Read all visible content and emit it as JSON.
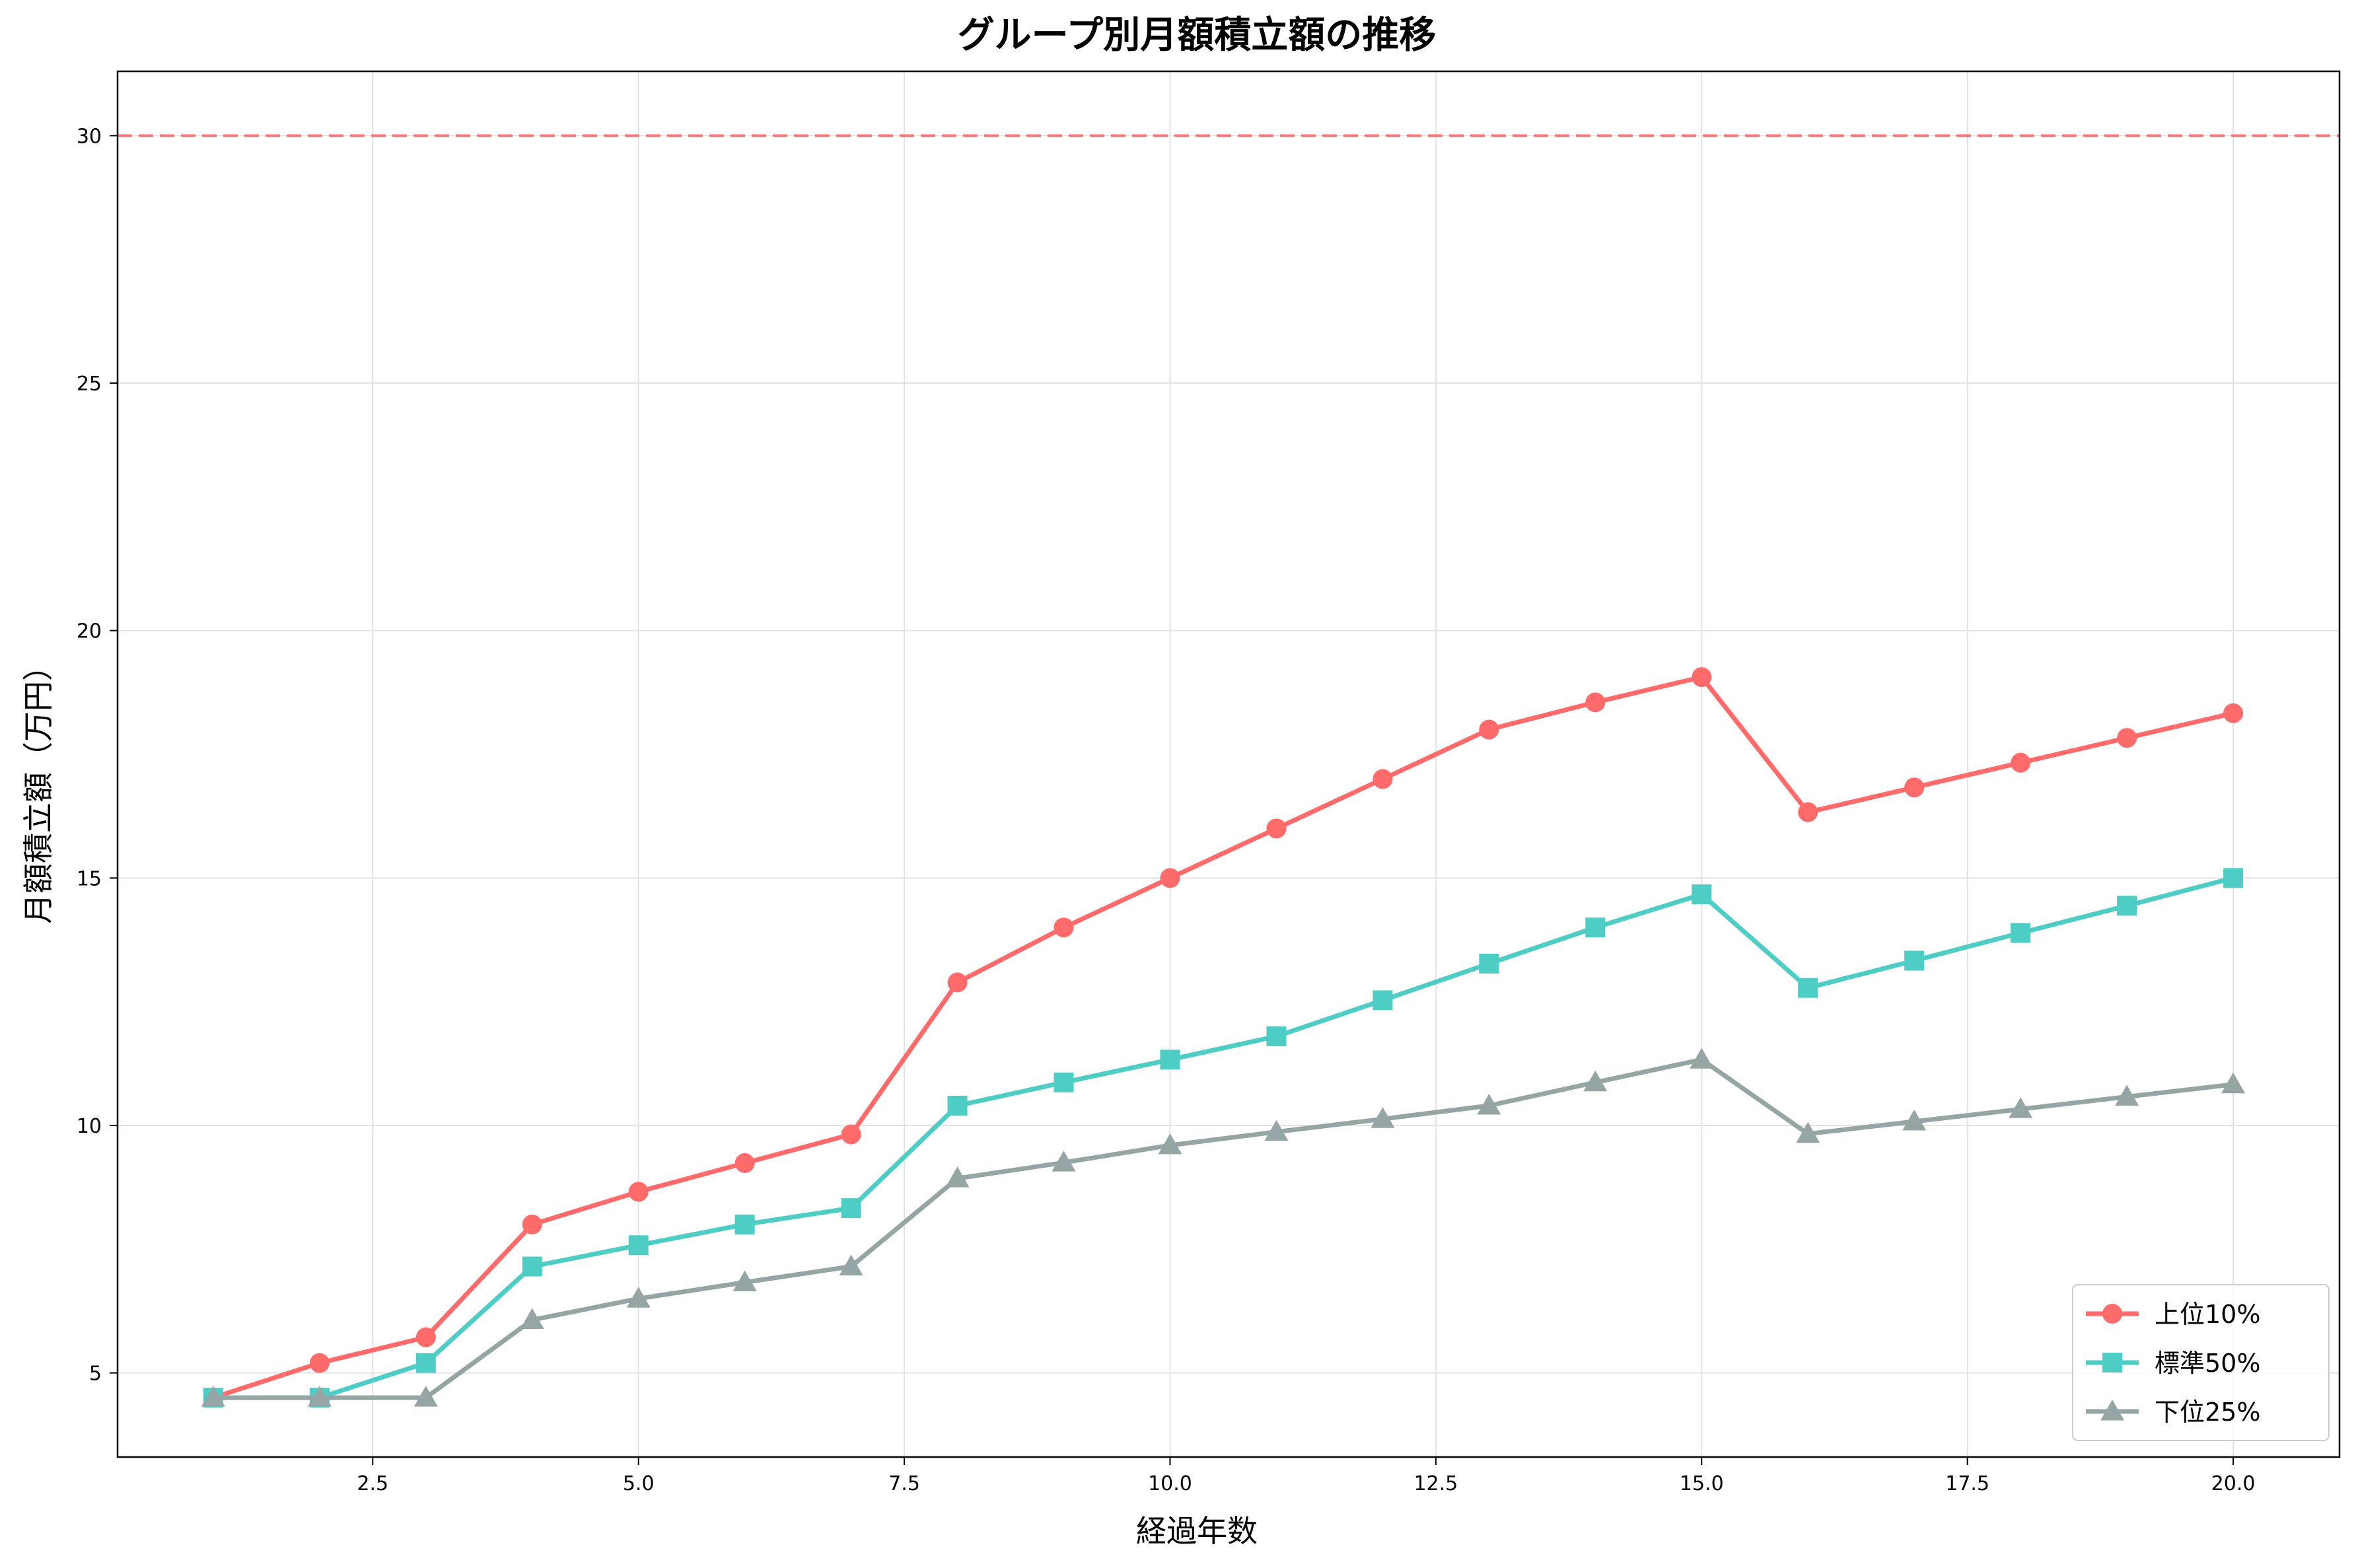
{
  "chart_data": {
    "type": "line",
    "title": "グループ別月額積立額の推移",
    "xlabel": "経過年数",
    "ylabel": "月額積立額（万円）",
    "xlim": [
      0.1,
      21.0
    ],
    "ylim": [
      3.3,
      31.3
    ],
    "x_ticks": [
      2.5,
      5.0,
      7.5,
      10.0,
      12.5,
      15.0,
      17.5,
      20.0
    ],
    "y_ticks": [
      5,
      10,
      15,
      20,
      25,
      30
    ],
    "grid": true,
    "legend_position": "bottom-right",
    "reference_line": {
      "y": 30,
      "color": "#ff6b6b",
      "style": "dashed"
    },
    "x": [
      1,
      2,
      3,
      4,
      5,
      6,
      7,
      8,
      9,
      10,
      11,
      12,
      13,
      14,
      15,
      16,
      17,
      18,
      19,
      20
    ],
    "series": [
      {
        "name": "上位10%",
        "color": "#ff6b6b",
        "marker": "circle",
        "values": [
          4.5,
          5.2,
          5.72,
          8.0,
          8.66,
          9.24,
          9.82,
          12.89,
          14.0,
          15.0,
          16.0,
          17.0,
          18.0,
          18.55,
          19.06,
          16.33,
          16.83,
          17.33,
          17.83,
          18.33
        ]
      },
      {
        "name": "標準50%",
        "color": "#4ecdc4",
        "marker": "square",
        "values": [
          4.5,
          4.5,
          5.2,
          7.15,
          7.58,
          8.0,
          8.33,
          10.4,
          10.87,
          11.33,
          11.8,
          12.53,
          13.27,
          14.0,
          14.67,
          12.78,
          13.33,
          13.89,
          14.44,
          15.0
        ]
      },
      {
        "name": "下位25%",
        "color": "#95a5a6",
        "marker": "triangle",
        "values": [
          4.5,
          4.5,
          4.5,
          6.07,
          6.5,
          6.83,
          7.15,
          8.93,
          9.25,
          9.6,
          9.87,
          10.13,
          10.4,
          10.87,
          11.33,
          9.83,
          10.08,
          10.33,
          10.58,
          10.83
        ]
      }
    ]
  }
}
